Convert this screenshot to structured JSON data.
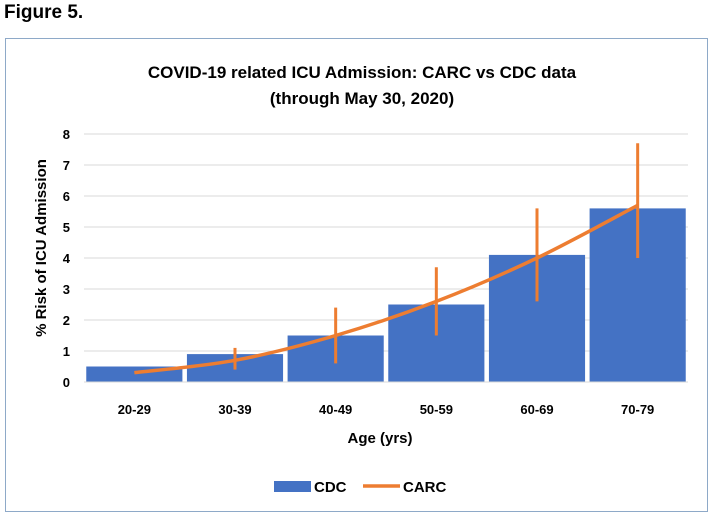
{
  "figure_label": "Figure 5.",
  "colors": {
    "cdc": "#4472c4",
    "carc": "#ed7d31",
    "grid": "#d9d9d9",
    "frame": "#8ea9c8"
  },
  "chart_data": {
    "type": "bar",
    "title": "COVID-19 related ICU Admission: CARC vs CDC data",
    "subtitle": "(through May 30, 2020)",
    "xlabel": "Age (yrs)",
    "ylabel": "% Risk of ICU Admission",
    "ylim": [
      0,
      8
    ],
    "yticks": [
      "0",
      "1",
      "2",
      "3",
      "4",
      "5",
      "6",
      "7",
      "8"
    ],
    "grid": true,
    "legend_position": "bottom",
    "categories": [
      "20-29",
      "30-39",
      "40-49",
      "50-59",
      "60-69",
      "70-79"
    ],
    "series": [
      {
        "name": "CDC",
        "kind": "bar",
        "values": [
          0.5,
          0.9,
          1.5,
          2.5,
          4.1,
          5.6
        ]
      },
      {
        "name": "CARC",
        "kind": "line",
        "values": [
          0.3,
          0.7,
          1.5,
          2.6,
          4.0,
          5.7
        ],
        "error_low": [
          null,
          0.4,
          0.6,
          1.5,
          2.6,
          4.0
        ],
        "error_high": [
          null,
          1.1,
          2.4,
          3.7,
          5.6,
          7.7
        ]
      }
    ]
  }
}
